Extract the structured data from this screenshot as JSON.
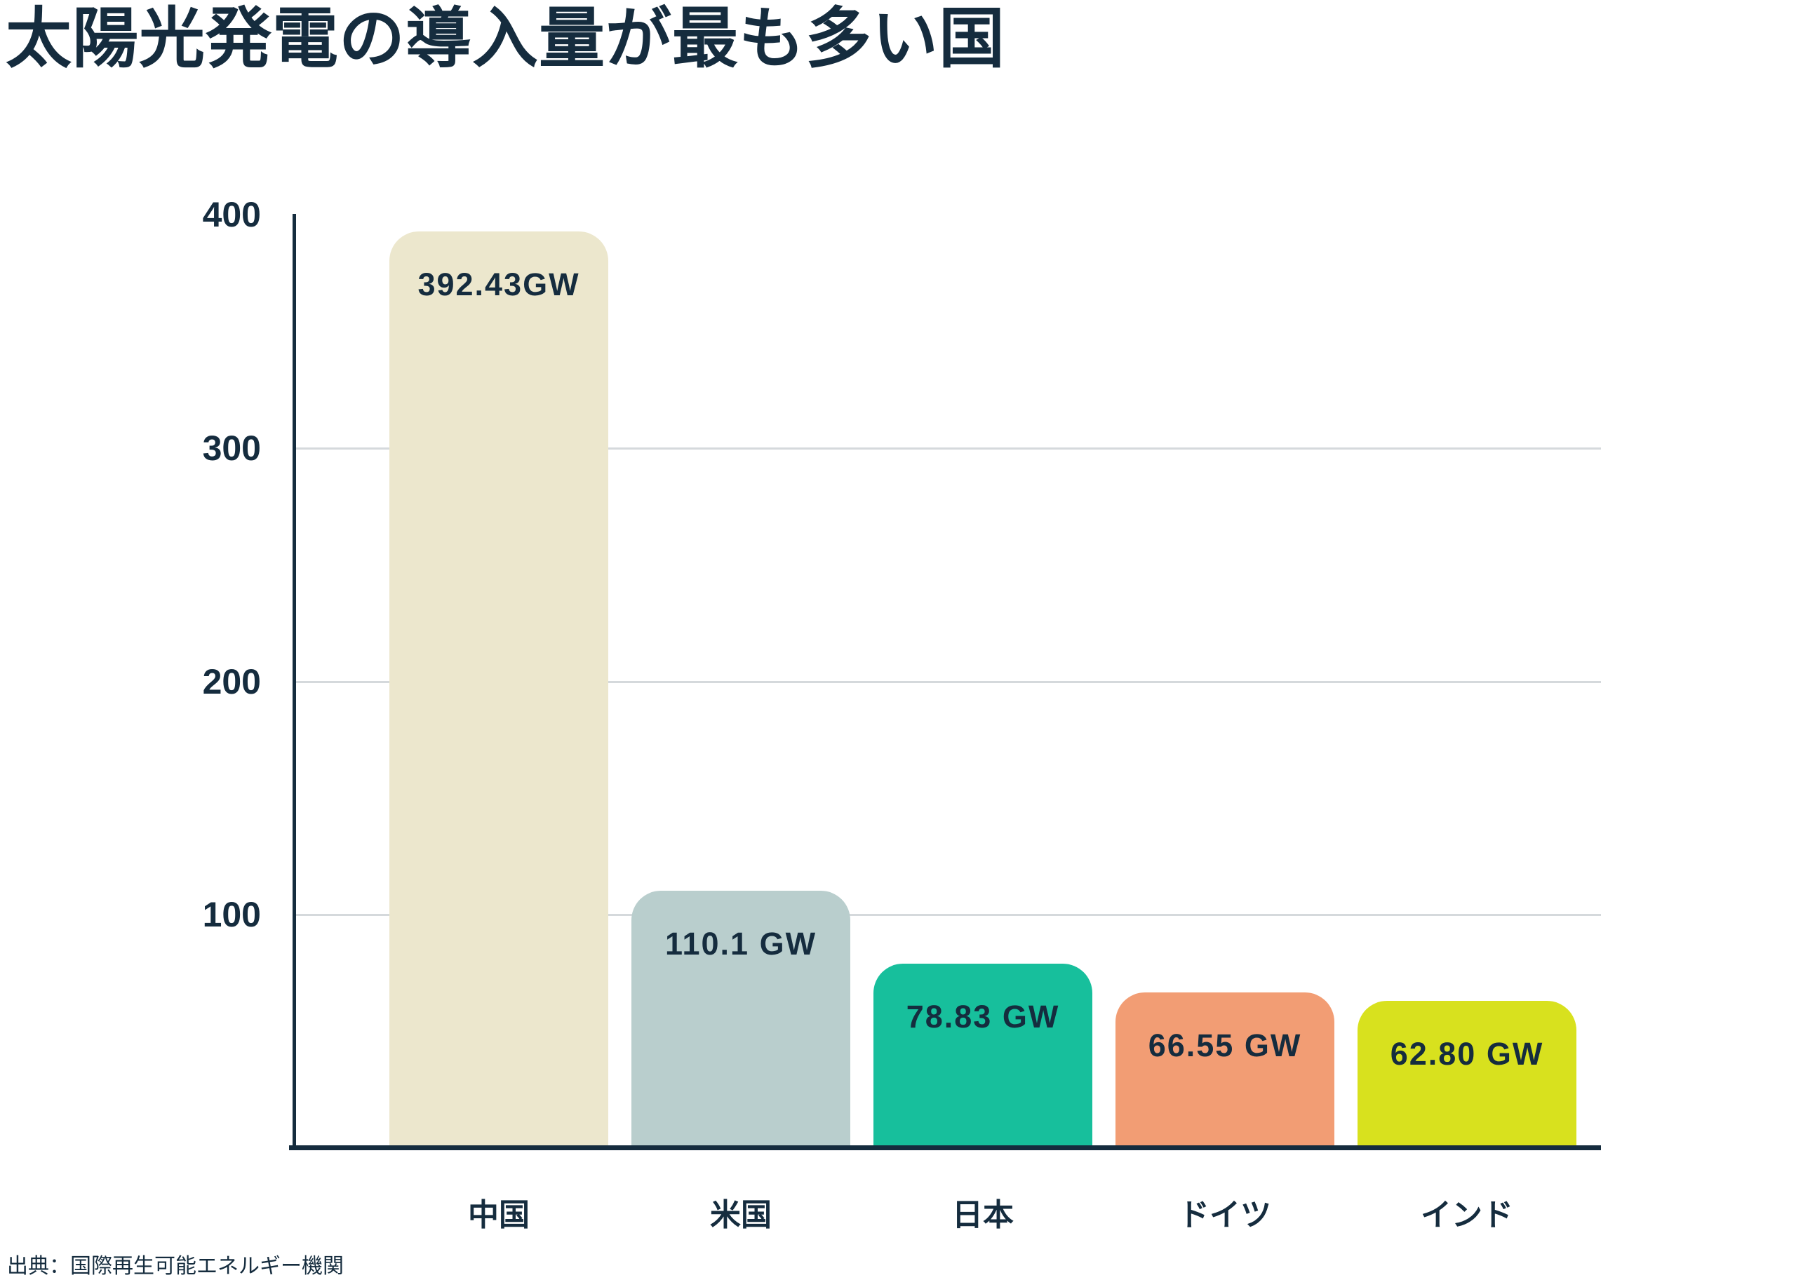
{
  "title": "太陽光発電の導入量が最も多い国",
  "source": "出典：国際再生可能エネルギー機関",
  "colors": {
    "text": "#152c3e",
    "axis": "#152c3e",
    "gridline": "#d5d9dc",
    "background": "#ffffff"
  },
  "chart_data": {
    "type": "bar",
    "title": "太陽光発電の導入量が最も多い国",
    "xlabel": "",
    "ylabel": "",
    "unit": "GW",
    "categories": [
      "中国",
      "米国",
      "日本",
      "ドイツ",
      "インド"
    ],
    "values": [
      392.43,
      110.1,
      78.83,
      66.55,
      62.8
    ],
    "value_labels": [
      "392.43GW",
      "110.1 GW",
      "78.83 GW",
      "66.55 GW",
      "62.80 GW"
    ],
    "bar_colors": [
      "#ece7cd",
      "#b9cecd",
      "#17bf9c",
      "#f29d74",
      "#d8e11e"
    ],
    "ylim": [
      0,
      400
    ],
    "yticks": [
      400,
      300,
      200,
      100
    ],
    "gridline_ticks": [
      300,
      200,
      100
    ],
    "grid": "horizontal",
    "legend": "none",
    "source": "出典：国際再生可能エネルギー機関"
  }
}
